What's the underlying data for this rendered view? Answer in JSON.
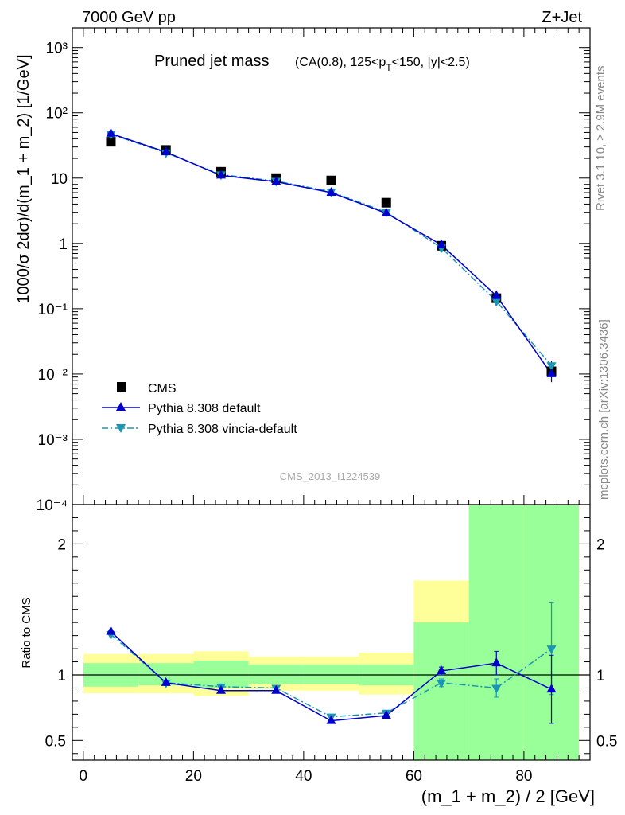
{
  "header": {
    "energy_label": "7000 GeV pp",
    "process_label": "Z+Jet"
  },
  "side_labels": {
    "rivet": "Rivet 3.1.10, ≥ 2.9M events",
    "mcplots": "mcplots.cern.ch [arXiv:1306.3436]"
  },
  "main_plot": {
    "title_main": "Pruned jet mass",
    "title_sub": "(CA(0.8), 125<p",
    "title_sub_subscript": "T",
    "title_sub_rest": "<150, |y|<2.5)",
    "ylabel": "1000/σ 2dσ)/d(m_1 + m_2) [1/GeV]",
    "watermark": "CMS_2013_I1224539",
    "yscale": "log",
    "ylim": [
      0.0001,
      2000
    ],
    "y_tick_labels": [
      "10⁻⁴",
      "10⁻³",
      "10⁻²",
      "10⁻¹",
      "1",
      "10",
      "10²",
      "10³"
    ],
    "legend_placement": "bottom-left"
  },
  "ratio_plot": {
    "ylabel": "Ratio to CMS",
    "xlabel": "(m_1 + m_2) / 2 [GeV]",
    "ylim": [
      0.35,
      2.3
    ],
    "y_tick_labels": [
      "0.5",
      "1",
      "2"
    ],
    "x_tick_labels": [
      "0",
      "20",
      "40",
      "60",
      "80"
    ]
  },
  "colors": {
    "data": "#000000",
    "pythia_default": "#0000cc",
    "pythia_vincia": "#1a96b4",
    "band_inner": "#99ff99",
    "band_outer": "#ffff99"
  },
  "chart_data": {
    "type": "scatter",
    "title": "Pruned jet mass (CA(0.8), 125<pT<150, |y|<2.5)",
    "xlabel": "(m_1 + m_2) / 2 [GeV]",
    "ylabel": "1000/σ 2dσ)/d(m_1 + m_2) [1/GeV]",
    "xlim": [
      -2,
      92
    ],
    "x": [
      5,
      15,
      25,
      35,
      45,
      55,
      65,
      75,
      85
    ],
    "x_bin_edges": [
      0,
      10,
      20,
      30,
      40,
      50,
      60,
      70,
      80,
      90
    ],
    "series": [
      {
        "name": "CMS",
        "marker": "square",
        "values": [
          36,
          27,
          12.5,
          10,
          9.2,
          4.2,
          0.92,
          0.145,
          0.011
        ]
      },
      {
        "name": "Pythia 8.308 default",
        "marker": "triangle-up",
        "line": "solid",
        "values": [
          48,
          25,
          11,
          8.8,
          6.0,
          2.9,
          0.95,
          0.158,
          0.01
        ],
        "ratio": [
          1.33,
          0.94,
          0.88,
          0.88,
          0.65,
          0.69,
          1.03,
          1.09,
          0.89
        ],
        "ratio_err": [
          0,
          0,
          0,
          0,
          0,
          0,
          0.03,
          0.09,
          0.26
        ]
      },
      {
        "name": "Pythia 8.308 vincia-default",
        "marker": "triangle-down",
        "line": "dash-dot",
        "values": [
          47,
          24.5,
          11.3,
          9,
          6.2,
          3.0,
          0.86,
          0.13,
          0.0135
        ],
        "ratio": [
          1.31,
          0.94,
          0.91,
          0.9,
          0.68,
          0.71,
          0.94,
          0.9,
          1.2
        ],
        "ratio_err": [
          0,
          0,
          0,
          0,
          0,
          0,
          0.03,
          0.07,
          0.35
        ]
      }
    ],
    "uncertainty_band": {
      "inner": [
        [
          0.91,
          1.09
        ],
        [
          0.92,
          1.09
        ],
        [
          0.9,
          1.11
        ],
        [
          0.93,
          1.08
        ],
        [
          0.93,
          1.08
        ],
        [
          0.92,
          1.08
        ],
        [
          0.35,
          1.4
        ],
        [
          0.35,
          2.3
        ],
        [
          0.35,
          2.3
        ]
      ],
      "outer": [
        [
          0.86,
          1.16
        ],
        [
          0.86,
          1.16
        ],
        [
          0.84,
          1.18
        ],
        [
          0.88,
          1.14
        ],
        [
          0.88,
          1.14
        ],
        [
          0.85,
          1.17
        ],
        [
          0.35,
          1.72
        ],
        [
          0.35,
          2.3
        ],
        [
          0.35,
          2.3
        ]
      ],
      "outer_lower_visible": [
        [
          0.86,
          0.86
        ],
        [
          0.86,
          0.86
        ],
        [
          0.84,
          0.84
        ],
        [
          0.88,
          0.88
        ],
        [
          0.88,
          0.88
        ],
        [
          0.85,
          0.85
        ],
        [
          0.35,
          0.72
        ],
        [
          0.35,
          0.35
        ],
        [
          0.35,
          0.35
        ]
      ],
      "outer_upper_visible": [
        [
          1.16,
          1.16
        ],
        [
          1.16,
          1.16
        ],
        [
          1.18,
          1.18
        ],
        [
          1.14,
          1.14
        ],
        [
          1.14,
          1.14
        ],
        [
          1.17,
          1.17
        ],
        [
          1.4,
          1.72
        ],
        [
          1.88,
          2.3
        ],
        [
          2.3,
          2.3
        ]
      ]
    },
    "grid": false
  }
}
